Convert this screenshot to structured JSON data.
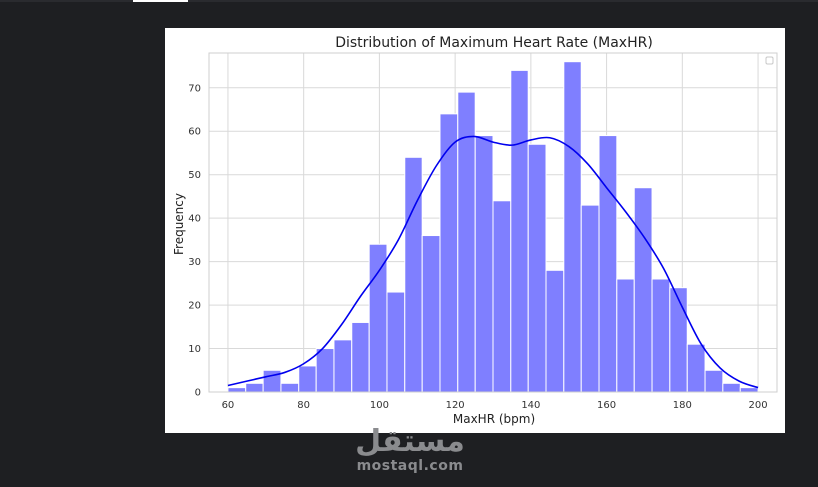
{
  "chart_data": {
    "type": "bar",
    "title": "Distribution of Maximum Heart Rate (MaxHR)",
    "xlabel": "MaxHR (bpm)",
    "ylabel": "Frequency",
    "xlim": [
      55,
      205
    ],
    "ylim": [
      0,
      78
    ],
    "xticks": [
      60,
      80,
      100,
      120,
      140,
      160,
      180,
      200
    ],
    "yticks": [
      0,
      10,
      20,
      30,
      40,
      50,
      60,
      70
    ],
    "grid": true,
    "legend": "top-right",
    "bar_color": "#7f7fff",
    "kde_color": "#0000ee",
    "bins": [
      {
        "x0": 60.0,
        "x1": 64.7,
        "count": 1
      },
      {
        "x0": 64.7,
        "x1": 69.3,
        "count": 2
      },
      {
        "x0": 69.3,
        "x1": 74.0,
        "count": 5
      },
      {
        "x0": 74.0,
        "x1": 78.7,
        "count": 2
      },
      {
        "x0": 78.7,
        "x1": 83.3,
        "count": 6
      },
      {
        "x0": 83.3,
        "x1": 88.0,
        "count": 10
      },
      {
        "x0": 88.0,
        "x1": 92.7,
        "count": 12
      },
      {
        "x0": 92.7,
        "x1": 97.3,
        "count": 16
      },
      {
        "x0": 97.3,
        "x1": 102.0,
        "count": 34
      },
      {
        "x0": 102.0,
        "x1": 106.7,
        "count": 23
      },
      {
        "x0": 106.7,
        "x1": 111.3,
        "count": 54
      },
      {
        "x0": 111.3,
        "x1": 116.0,
        "count": 36
      },
      {
        "x0": 116.0,
        "x1": 120.7,
        "count": 64
      },
      {
        "x0": 120.7,
        "x1": 125.3,
        "count": 69
      },
      {
        "x0": 125.3,
        "x1": 130.0,
        "count": 59
      },
      {
        "x0": 130.0,
        "x1": 134.7,
        "count": 44
      },
      {
        "x0": 134.7,
        "x1": 139.3,
        "count": 74
      },
      {
        "x0": 139.3,
        "x1": 144.0,
        "count": 57
      },
      {
        "x0": 144.0,
        "x1": 148.7,
        "count": 28
      },
      {
        "x0": 148.7,
        "x1": 153.3,
        "count": 76
      },
      {
        "x0": 153.3,
        "x1": 158.0,
        "count": 43
      },
      {
        "x0": 158.0,
        "x1": 162.7,
        "count": 59
      },
      {
        "x0": 162.7,
        "x1": 167.3,
        "count": 26
      },
      {
        "x0": 167.3,
        "x1": 172.0,
        "count": 47
      },
      {
        "x0": 172.0,
        "x1": 176.7,
        "count": 26
      },
      {
        "x0": 176.7,
        "x1": 181.3,
        "count": 24
      },
      {
        "x0": 181.3,
        "x1": 186.0,
        "count": 11
      },
      {
        "x0": 186.0,
        "x1": 190.7,
        "count": 5
      },
      {
        "x0": 190.7,
        "x1": 195.3,
        "count": 2
      },
      {
        "x0": 195.3,
        "x1": 200.0,
        "count": 1
      }
    ],
    "kde": {
      "x": [
        60,
        65,
        70,
        75,
        80,
        85,
        90,
        95,
        100,
        105,
        110,
        115,
        120,
        125,
        130,
        135,
        140,
        145,
        150,
        155,
        160,
        165,
        170,
        175,
        180,
        185,
        190,
        195,
        200
      ],
      "y": [
        1.5,
        2.5,
        3.5,
        4.5,
        6.5,
        10,
        15.5,
        22,
        28,
        35,
        44,
        52,
        57.5,
        58.8,
        57.5,
        56.8,
        58,
        58.5,
        56.5,
        52.5,
        47,
        41.5,
        35.5,
        28.5,
        19.5,
        11,
        5.5,
        2.5,
        1
      ]
    }
  },
  "watermark": {
    "arabic": "مستقل",
    "latin": "mostaql.com"
  }
}
